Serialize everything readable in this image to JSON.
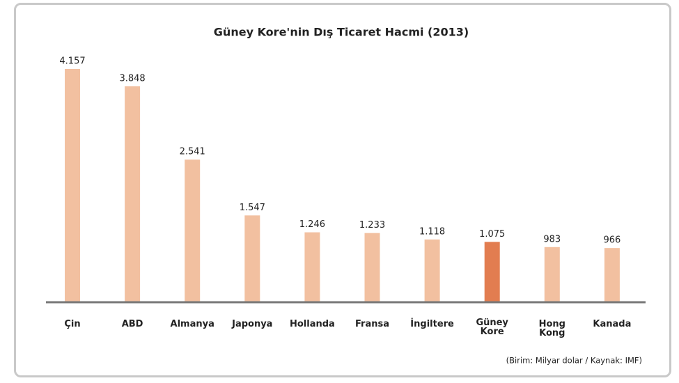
{
  "chart_data": {
    "type": "bar",
    "title": "Güney Kore'nin Dış Ticaret Hacmi (2013)",
    "categories": [
      "Çin",
      "ABD",
      "Almanya",
      "Japonya",
      "Hollanda",
      "Fransa",
      "İngiltere",
      "Güney Kore",
      "Hong Kong",
      "Kanada"
    ],
    "values": [
      4157,
      3848,
      2541,
      1547,
      1246,
      1233,
      1118,
      1075,
      983,
      966
    ],
    "value_labels": [
      "4.157",
      "3.848",
      "2.541",
      "1.547",
      "1.246",
      "1.233",
      "1.118",
      "1.075",
      "983",
      "966"
    ],
    "colors": [
      "#f2c0a0",
      "#f2c0a0",
      "#f2c0a0",
      "#f2c0a0",
      "#f2c0a0",
      "#f2c0a0",
      "#f2c0a0",
      "#e27d50",
      "#f2c0a0",
      "#f2c0a0"
    ],
    "note": "(Birim: Milyar dolar / Kaynak: IMF)"
  }
}
